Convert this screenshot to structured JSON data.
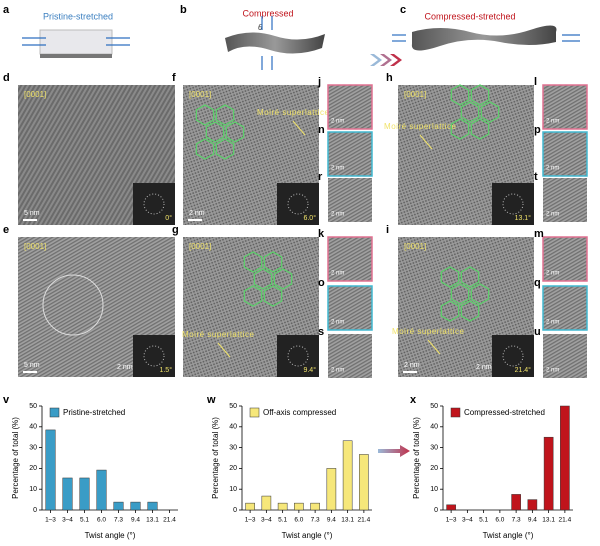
{
  "schematics": {
    "a": "Pristine-stretched",
    "b": "Compressed",
    "theta": "θ",
    "c": "Compressed-stretched"
  },
  "panel_letters": [
    "a",
    "b",
    "c",
    "d",
    "e",
    "f",
    "g",
    "h",
    "i",
    "j",
    "k",
    "l",
    "m",
    "n",
    "o",
    "p",
    "q",
    "r",
    "s",
    "t",
    "u",
    "v",
    "w",
    "x"
  ],
  "micrographs": {
    "d": {
      "zone": "[0001]",
      "scale": "5 nm",
      "angle": "0°"
    },
    "e": {
      "zone": "[0001]",
      "scale": "5 nm",
      "inset_scale": "2 nm",
      "angle": "1.5°"
    },
    "f": {
      "zone": "[0001]",
      "scale": "2 nm",
      "annotation": "Moiré superlattice",
      "angle": "6.0°"
    },
    "g": {
      "zone": "[0001]",
      "annotation": "Moiré superlattice",
      "angle": "9.4°"
    },
    "h": {
      "zone": "[0001]",
      "annotation": "Moiré superlattice",
      "angle": "13.1°"
    },
    "i": {
      "zone": "[0001]",
      "scale": "2 nm",
      "inset_scale": "2 nm",
      "annotation": "Moiré superlattice",
      "angle": "21.4°"
    }
  },
  "small_scale": "2 nm",
  "chart_data": [
    {
      "type": "bar",
      "ylabel": "Percentage of total (%)",
      "xlabel": "Twist angle (°)",
      "categories": [
        "1–3",
        "3–4",
        "5.1",
        "6.0",
        "7.3",
        "9.4",
        "13.1",
        "21.4"
      ],
      "series": [
        {
          "name": "Pristine-stretched",
          "color": "#3a9cc6",
          "values": [
            38.5,
            15.4,
            15.4,
            19.2,
            3.8,
            3.8,
            3.8,
            0
          ]
        }
      ],
      "ylim": [
        0,
        50
      ],
      "yticks": [
        0,
        10,
        20,
        30,
        40,
        50
      ],
      "legend": "upper-left"
    },
    {
      "type": "bar",
      "ylabel": "Percentage of total (%)",
      "xlabel": "Twist angle (°)",
      "categories": [
        "1–3",
        "3–4",
        "5.1",
        "6.0",
        "7.3",
        "9.4",
        "13.1",
        "21.4"
      ],
      "series": [
        {
          "name": "Off-axis compressed",
          "color": "#f6e77a",
          "values": [
            3.3,
            6.7,
            3.3,
            3.3,
            3.3,
            20,
            33.3,
            26.7
          ]
        }
      ],
      "ylim": [
        0,
        50
      ],
      "yticks": [
        0,
        10,
        20,
        30,
        40,
        50
      ],
      "legend": "upper-left"
    },
    {
      "type": "bar",
      "ylabel": "Percentage of total (%)",
      "xlabel": "Twist angle (°)",
      "categories": [
        "1–3",
        "3–4",
        "5.1",
        "6.0",
        "7.3",
        "9.4",
        "13.1",
        "21.4"
      ],
      "series": [
        {
          "name": "Compressed-stretched",
          "color": "#c0141c",
          "values": [
            2.5,
            0,
            0,
            0,
            7.5,
            5,
            35,
            50
          ]
        }
      ],
      "ylim": [
        0,
        50
      ],
      "yticks": [
        0,
        10,
        20,
        30,
        40,
        50
      ],
      "legend": "upper-left"
    }
  ]
}
